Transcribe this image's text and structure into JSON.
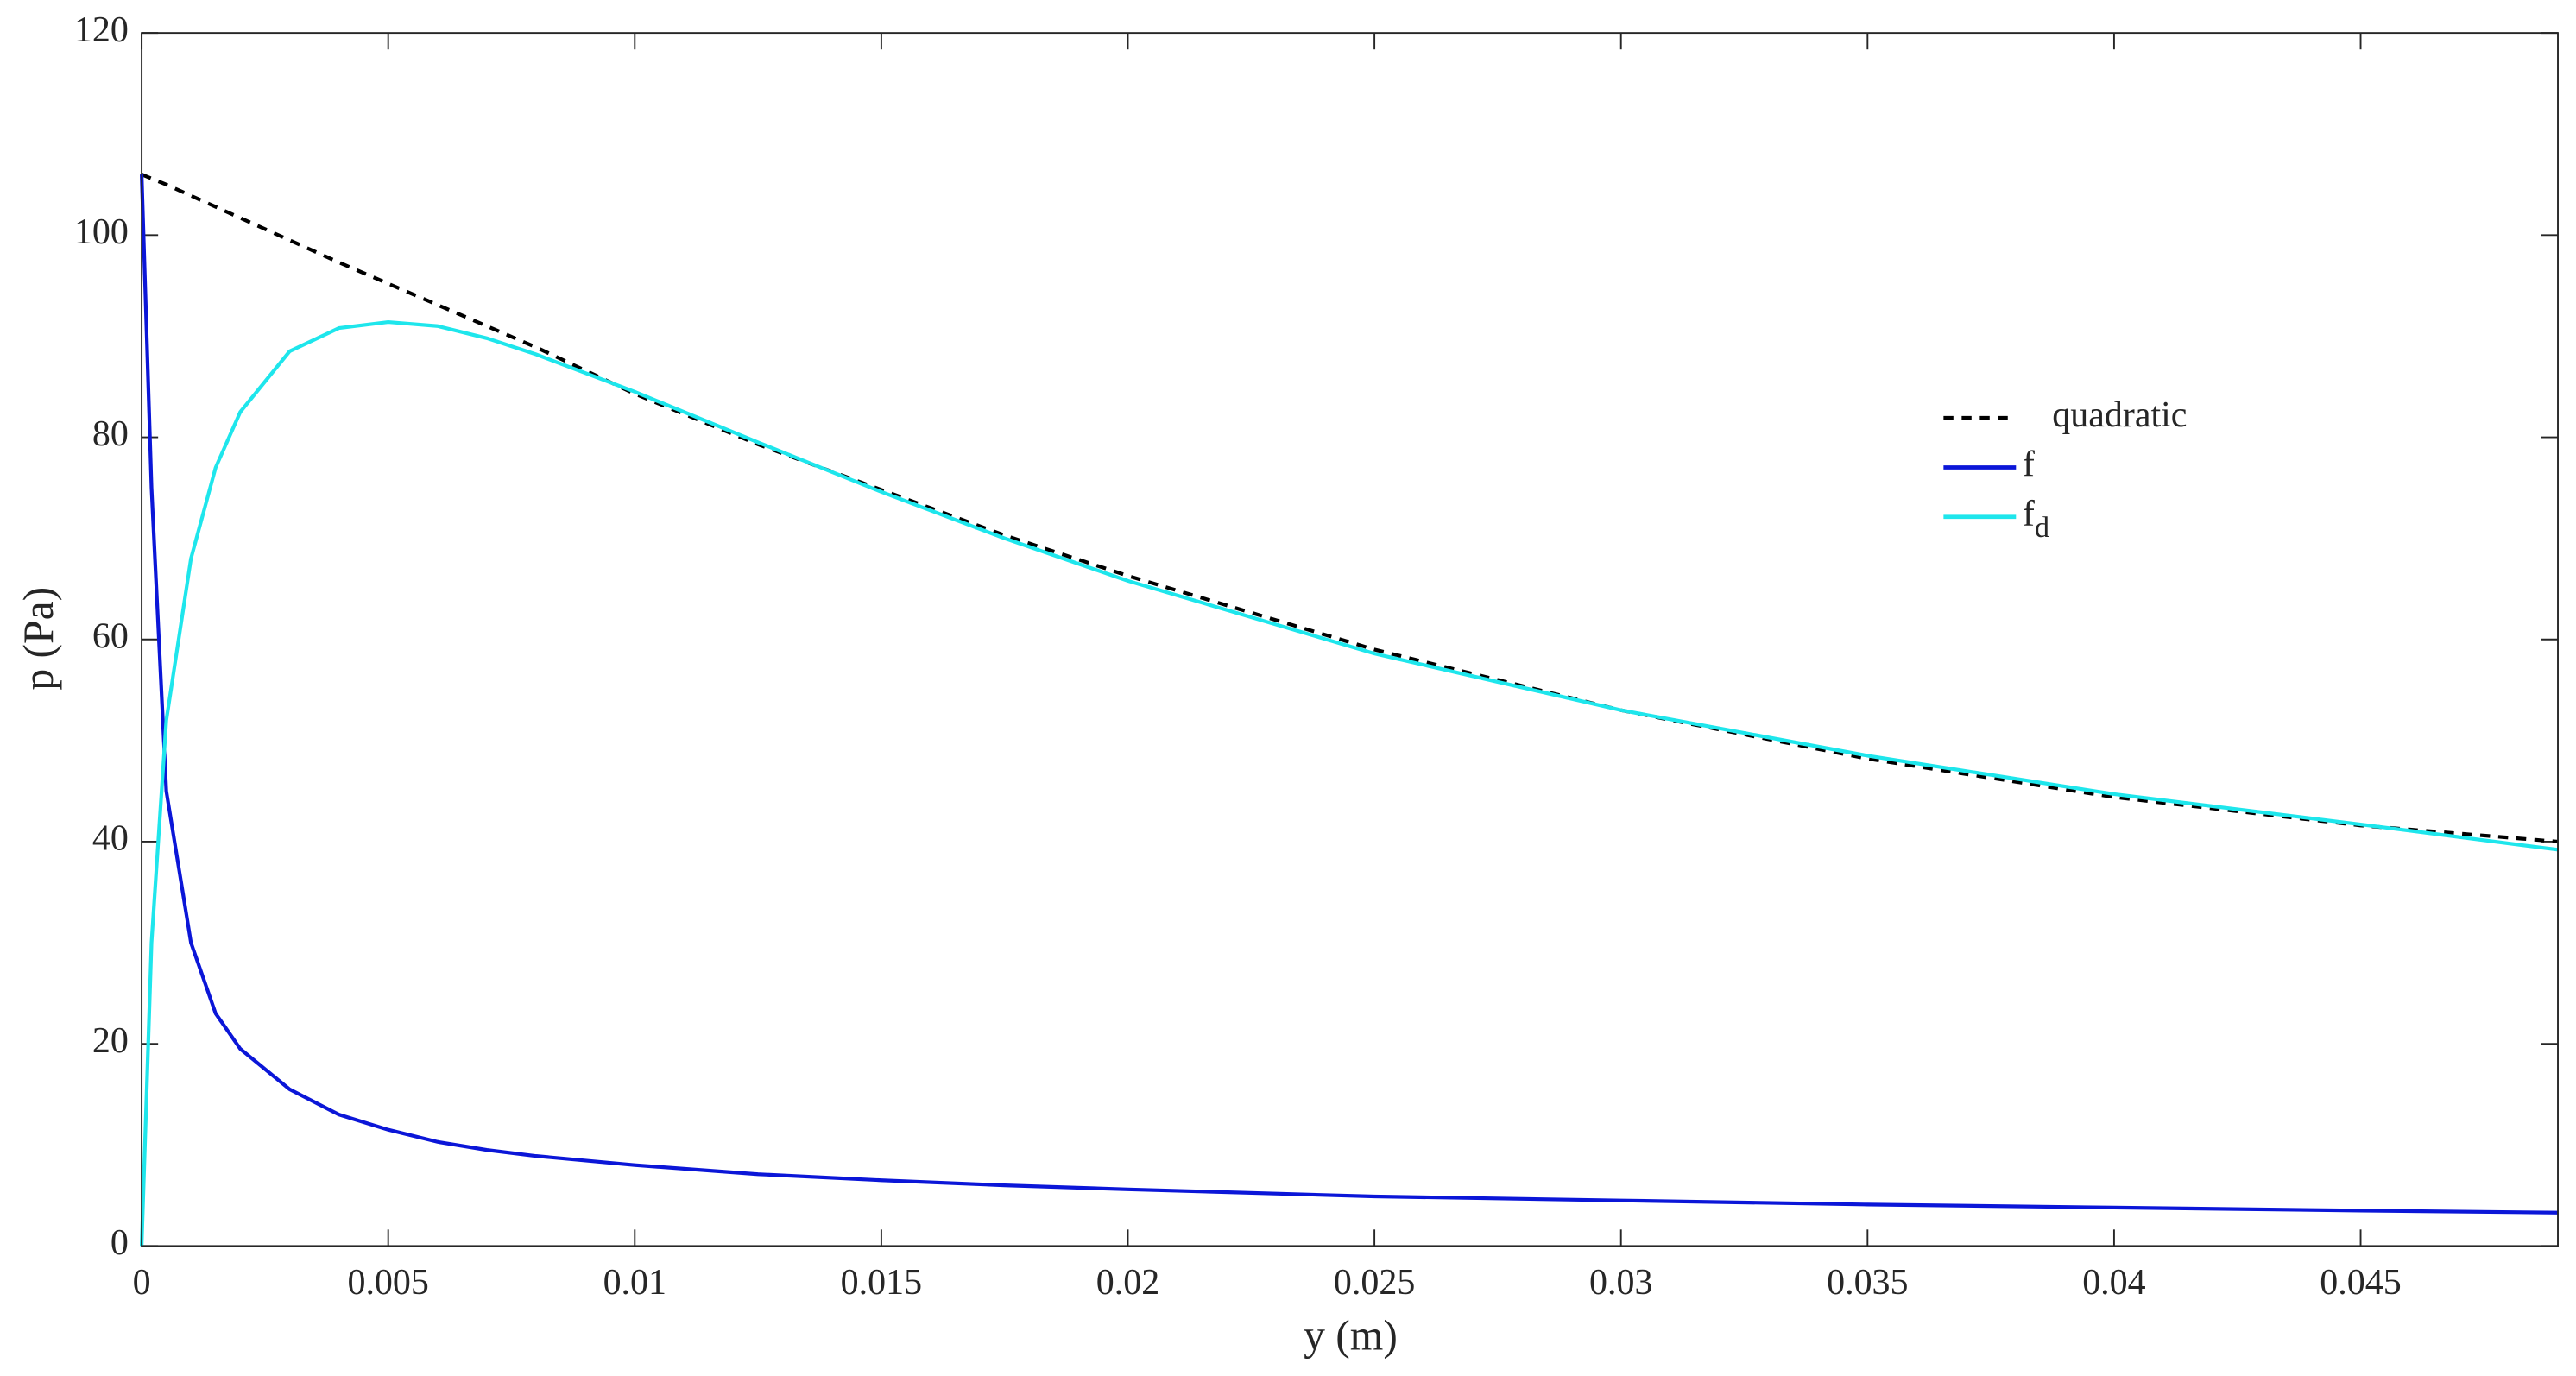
{
  "chart_data": {
    "type": "line",
    "x_label": "y (m)",
    "y_label": "p (Pa)",
    "x": [
      0,
      0.0002,
      0.0005,
      0.001,
      0.0015,
      0.002,
      0.003,
      0.004,
      0.005,
      0.006,
      0.007,
      0.008,
      0.01,
      0.0125,
      0.015,
      0.0175,
      0.02,
      0.025,
      0.03,
      0.035,
      0.04,
      0.045,
      0.049
    ],
    "series": [
      {
        "name": "quadratic",
        "color": "#000000",
        "dashed": true,
        "values": [
          106,
          105.6,
          105,
          103.9,
          102.8,
          101.7,
          99.5,
          97.3,
          95.2,
          93.1,
          91,
          88.9,
          84.3,
          79.3,
          74.8,
          70.3,
          66.3,
          59,
          53,
          48.2,
          44.4,
          41.6,
          40
        ]
      },
      {
        "name": "f",
        "color": "#0b16d8",
        "dashed": false,
        "values": [
          106,
          75,
          45,
          30,
          23,
          19.5,
          15.5,
          13,
          11.5,
          10.3,
          9.5,
          8.9,
          8,
          7.1,
          6.5,
          6,
          5.6,
          4.9,
          4.5,
          4.1,
          3.8,
          3.5,
          3.3
        ]
      },
      {
        "name": "f_d",
        "color": "#1ee6ec",
        "dashed": false,
        "values": [
          0,
          30,
          52,
          68,
          77,
          82.5,
          88.5,
          90.8,
          91.4,
          91,
          89.8,
          88.2,
          84.5,
          79.5,
          74.6,
          70,
          65.8,
          58.6,
          53,
          48.5,
          44.7,
          41.7,
          39.2
        ]
      }
    ],
    "xlim": [
      0,
      0.049
    ],
    "xticks": [
      0,
      0.005,
      0.01,
      0.015,
      0.02,
      0.025,
      0.03,
      0.035,
      0.04,
      0.045
    ],
    "ylim": [
      0,
      120
    ],
    "yticks": [
      0,
      20,
      40,
      60,
      80,
      100,
      120
    ],
    "legend": "upper-right"
  }
}
